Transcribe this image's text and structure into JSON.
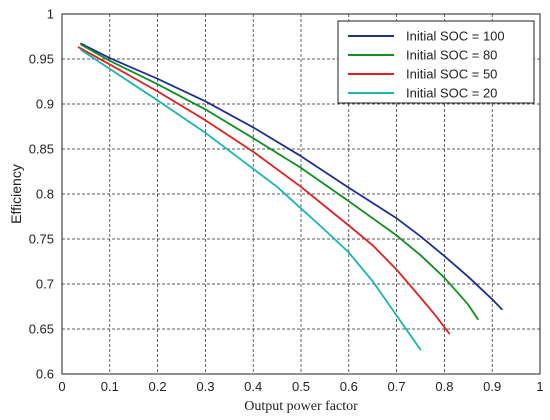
{
  "chart_data": {
    "type": "line",
    "title": "",
    "xlabel": "Output power factor",
    "ylabel": "Efficiency",
    "xlim": [
      0,
      1
    ],
    "ylim": [
      0.6,
      1
    ],
    "xticks": [
      0,
      0.1,
      0.2,
      0.3,
      0.4,
      0.5,
      0.6,
      0.7,
      0.8,
      0.9,
      1
    ],
    "yticks": [
      0.6,
      0.65,
      0.7,
      0.75,
      0.8,
      0.85,
      0.9,
      0.95,
      1
    ],
    "xtick_labels": [
      "0",
      "0.1",
      "0.2",
      "0.3",
      "0.4",
      "0.5",
      "0.6",
      "0.7",
      "0.8",
      "0.9",
      "1"
    ],
    "ytick_labels": [
      "0.6",
      "0.65",
      "0.7",
      "0.75",
      "0.8",
      "0.85",
      "0.9",
      "0.95",
      "1"
    ],
    "grid": true,
    "legend_position": "top-right",
    "series": [
      {
        "name": "Initial SOC = 100",
        "color": "#1f2f8f",
        "x": [
          0.04,
          0.1,
          0.2,
          0.3,
          0.4,
          0.5,
          0.6,
          0.7,
          0.75,
          0.8,
          0.85,
          0.9,
          0.92
        ],
        "y": [
          0.967,
          0.951,
          0.928,
          0.903,
          0.874,
          0.842,
          0.807,
          0.773,
          0.753,
          0.731,
          0.708,
          0.683,
          0.672
        ]
      },
      {
        "name": "Initial SOC = 80",
        "color": "#0f8f1f",
        "x": [
          0.04,
          0.1,
          0.2,
          0.3,
          0.4,
          0.5,
          0.6,
          0.7,
          0.75,
          0.8,
          0.85,
          0.87
        ],
        "y": [
          0.966,
          0.948,
          0.922,
          0.894,
          0.862,
          0.829,
          0.792,
          0.754,
          0.732,
          0.707,
          0.677,
          0.661
        ]
      },
      {
        "name": "Initial SOC = 50",
        "color": "#e02020",
        "x": [
          0.035,
          0.1,
          0.2,
          0.3,
          0.4,
          0.5,
          0.6,
          0.65,
          0.7,
          0.75,
          0.78,
          0.81
        ],
        "y": [
          0.963,
          0.944,
          0.914,
          0.882,
          0.847,
          0.808,
          0.765,
          0.743,
          0.716,
          0.685,
          0.666,
          0.645
        ]
      },
      {
        "name": "Initial SOC = 20",
        "color": "#19b4b4",
        "x": [
          0.04,
          0.1,
          0.2,
          0.3,
          0.4,
          0.45,
          0.5,
          0.55,
          0.6,
          0.65,
          0.7,
          0.75
        ],
        "y": [
          0.96,
          0.939,
          0.904,
          0.868,
          0.828,
          0.808,
          0.784,
          0.76,
          0.735,
          0.703,
          0.665,
          0.627
        ]
      }
    ]
  }
}
